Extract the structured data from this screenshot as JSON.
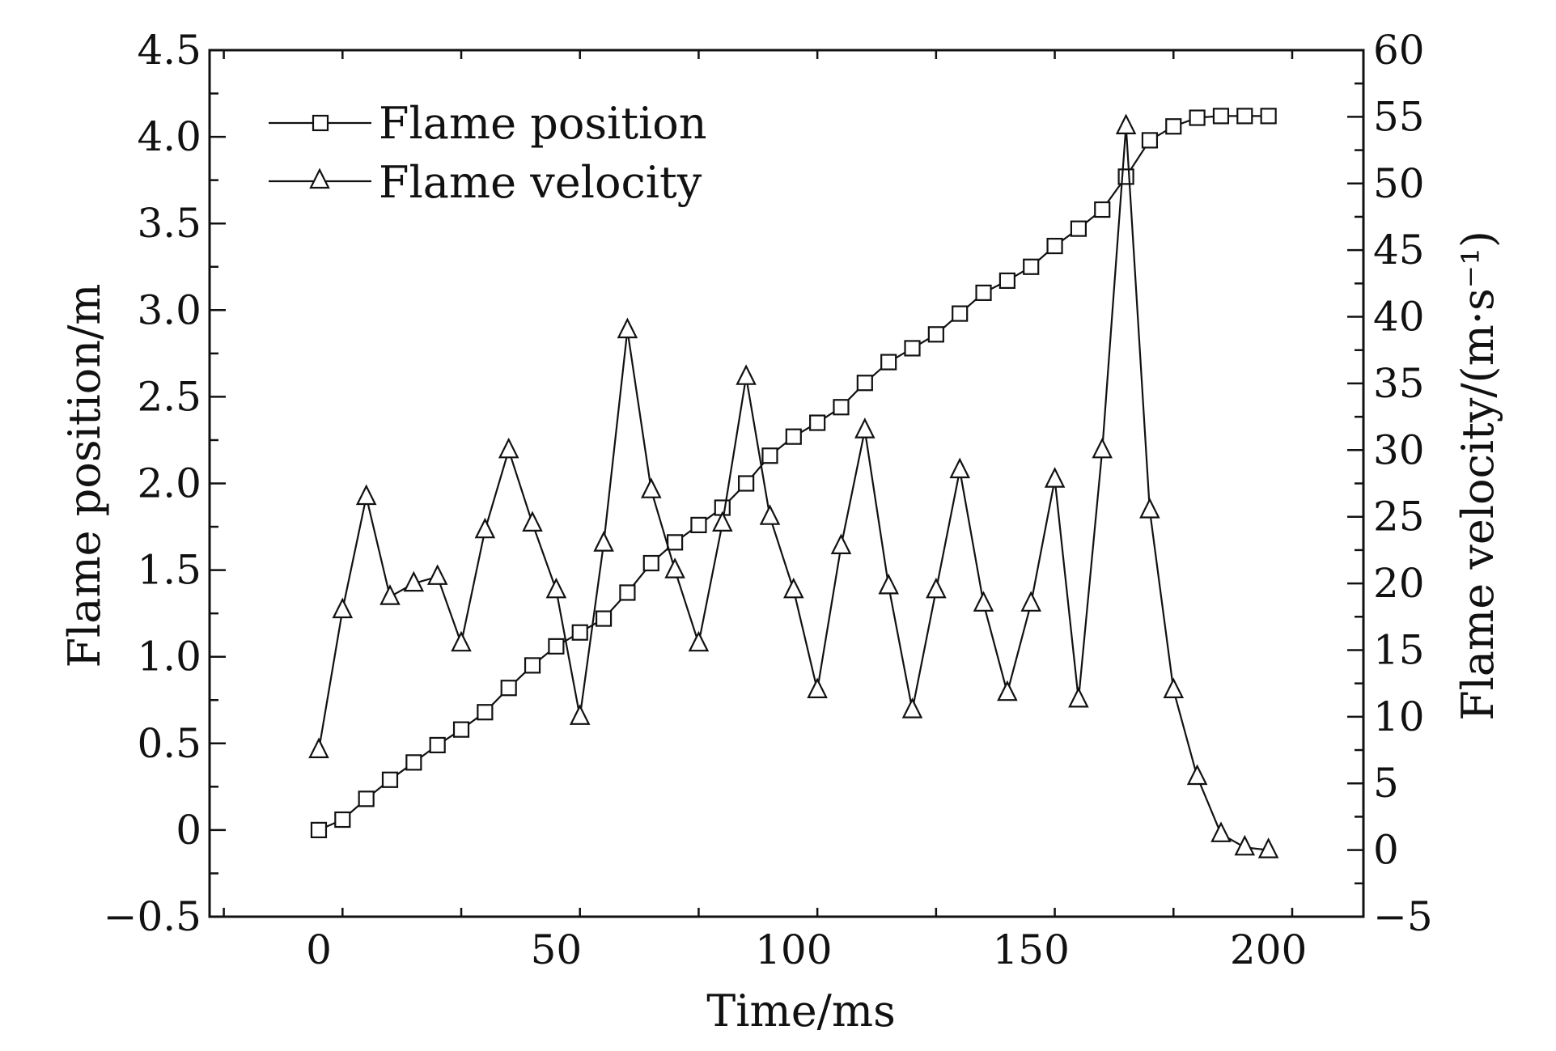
{
  "chart_data": {
    "type": "line",
    "xlabel": "Time/ms",
    "ylabel_left": "Flame position/m",
    "ylabel_right": "Flame velocity/(m·s⁻¹)",
    "xlim": [
      -23,
      220
    ],
    "xticks": [
      0,
      50,
      100,
      150,
      200
    ],
    "xtick_labels": [
      "0",
      "50",
      "100",
      "150",
      "200"
    ],
    "ylim_left": [
      -0.5,
      4.5
    ],
    "yticks_left": [
      -0.5,
      0,
      0.5,
      1.0,
      1.5,
      2.0,
      2.5,
      3.0,
      3.5,
      4.0,
      4.5
    ],
    "ytick_labels_left": [
      "−0.5",
      "0",
      "0.5",
      "1.0",
      "1.5",
      "2.0",
      "2.5",
      "3.0",
      "3.5",
      "4.0",
      "4.5"
    ],
    "ylim_right": [
      -5,
      60
    ],
    "yticks_right": [
      -5,
      0,
      5,
      10,
      15,
      20,
      25,
      30,
      35,
      40,
      45,
      50,
      55,
      60
    ],
    "ytick_labels_right": [
      "−5",
      "0",
      "5",
      "10",
      "15",
      "20",
      "25",
      "30",
      "35",
      "40",
      "45",
      "50",
      "55",
      "60"
    ],
    "grid": false,
    "legend_position": "top-left",
    "series": [
      {
        "name": "Flame position",
        "axis": "left",
        "marker": "square",
        "x": [
          0,
          5,
          10,
          15,
          20,
          25,
          30,
          35,
          40,
          45,
          50,
          55,
          60,
          65,
          70,
          75,
          80,
          85,
          90,
          95,
          100,
          105,
          110,
          115,
          120,
          125,
          130,
          135,
          140,
          145,
          150,
          155,
          160,
          165,
          170,
          175,
          180,
          185,
          190,
          195,
          200
        ],
        "y": [
          0,
          0.06,
          0.18,
          0.29,
          0.39,
          0.49,
          0.58,
          0.68,
          0.82,
          0.95,
          1.06,
          1.14,
          1.22,
          1.37,
          1.54,
          1.66,
          1.76,
          1.86,
          2.0,
          2.16,
          2.27,
          2.35,
          2.44,
          2.58,
          2.7,
          2.78,
          2.86,
          2.98,
          3.1,
          3.17,
          3.25,
          3.37,
          3.47,
          3.58,
          3.77,
          3.98,
          4.06,
          4.11,
          4.12,
          4.12,
          4.12
        ]
      },
      {
        "name": "Flame velocity",
        "axis": "right",
        "marker": "triangle",
        "x": [
          0,
          5,
          10,
          15,
          20,
          25,
          30,
          35,
          40,
          45,
          50,
          55,
          60,
          65,
          70,
          75,
          80,
          85,
          90,
          95,
          100,
          105,
          110,
          115,
          120,
          125,
          130,
          135,
          140,
          145,
          150,
          155,
          160,
          165,
          170,
          175,
          180,
          185,
          190,
          195,
          200
        ],
        "y": [
          7.5,
          18,
          26.5,
          19,
          20,
          20.5,
          15.5,
          24,
          30,
          24.5,
          19.5,
          10,
          23,
          39,
          27,
          21,
          15.5,
          24.5,
          35.5,
          25,
          19.5,
          12,
          22.8,
          31.5,
          19.8,
          10.5,
          19.5,
          28.5,
          18.5,
          11.8,
          18.5,
          27.8,
          11.3,
          30,
          54.3,
          25.5,
          12,
          5.5,
          1.2,
          0.2,
          0
        ]
      }
    ]
  }
}
